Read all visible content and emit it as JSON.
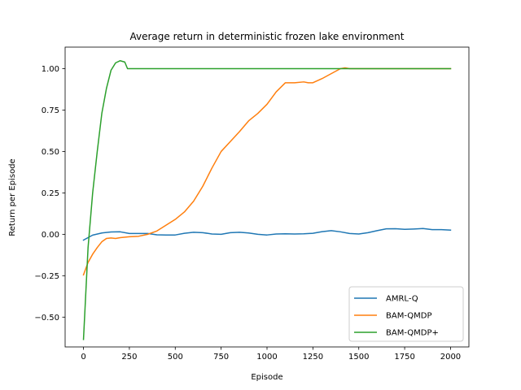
{
  "chart_data": {
    "type": "line",
    "title": "Average return in deterministic frozen lake environment",
    "xlabel": "Episode",
    "ylabel": "Return per Episode",
    "xlim": [
      -100,
      2100
    ],
    "ylim": [
      -0.68,
      1.13
    ],
    "xticks": [
      0,
      250,
      500,
      750,
      1000,
      1250,
      1500,
      1750,
      2000
    ],
    "yticks": [
      -0.5,
      -0.25,
      0.0,
      0.25,
      0.5,
      0.75,
      1.0
    ],
    "ytick_labels": [
      "−0.50",
      "−0.25",
      "0.00",
      "0.25",
      "0.50",
      "0.75",
      "1.00"
    ],
    "grid": false,
    "legend_position": "lower-right",
    "series": [
      {
        "name": "AMRL-Q",
        "color": "#1f77b4",
        "x": [
          0,
          50,
          100,
          150,
          200,
          250,
          300,
          350,
          400,
          450,
          500,
          550,
          600,
          650,
          700,
          750,
          800,
          850,
          900,
          950,
          1000,
          1050,
          1100,
          1150,
          1200,
          1250,
          1300,
          1350,
          1400,
          1450,
          1500,
          1550,
          1600,
          1650,
          1700,
          1750,
          1800,
          1850,
          1900,
          1950,
          2000
        ],
        "y": [
          -0.035,
          -0.005,
          0.008,
          0.014,
          0.015,
          0.005,
          0.005,
          0.005,
          -0.003,
          -0.004,
          -0.004,
          0.006,
          0.012,
          0.01,
          0.002,
          0.0,
          0.01,
          0.012,
          0.008,
          0.0,
          -0.004,
          0.002,
          0.003,
          0.002,
          0.003,
          0.006,
          0.016,
          0.022,
          0.015,
          0.005,
          0.002,
          0.01,
          0.022,
          0.033,
          0.034,
          0.03,
          0.032,
          0.035,
          0.028,
          0.028,
          0.025
        ]
      },
      {
        "name": "BAM-QMDP",
        "color": "#ff7f0e",
        "x": [
          0,
          25,
          50,
          75,
          100,
          125,
          150,
          175,
          200,
          250,
          300,
          350,
          400,
          450,
          500,
          550,
          600,
          650,
          700,
          750,
          800,
          850,
          900,
          950,
          1000,
          1050,
          1100,
          1150,
          1200,
          1225,
          1250,
          1300,
          1350,
          1400,
          1425,
          1450,
          1500,
          1600,
          1700,
          1800,
          1900,
          2000
        ],
        "y": [
          -0.245,
          -0.17,
          -0.12,
          -0.08,
          -0.045,
          -0.025,
          -0.022,
          -0.025,
          -0.02,
          -0.015,
          -0.012,
          0.0,
          0.02,
          0.055,
          0.09,
          0.135,
          0.2,
          0.29,
          0.4,
          0.5,
          0.56,
          0.62,
          0.685,
          0.73,
          0.785,
          0.86,
          0.915,
          0.915,
          0.92,
          0.915,
          0.915,
          0.94,
          0.97,
          1.0,
          1.005,
          1.0,
          1.0,
          1.0,
          1.0,
          1.0,
          1.0,
          1.0
        ]
      },
      {
        "name": "BAM-QMDP+",
        "color": "#2ca02c",
        "x": [
          0,
          25,
          50,
          75,
          100,
          125,
          150,
          175,
          200,
          225,
          240,
          260,
          300,
          400,
          500,
          1000,
          1500,
          2000
        ],
        "y": [
          -0.635,
          -0.08,
          0.25,
          0.5,
          0.73,
          0.88,
          0.99,
          1.035,
          1.048,
          1.04,
          1.0,
          1.0,
          1.0,
          1.0,
          1.0,
          1.0,
          1.0,
          1.0
        ]
      }
    ]
  }
}
